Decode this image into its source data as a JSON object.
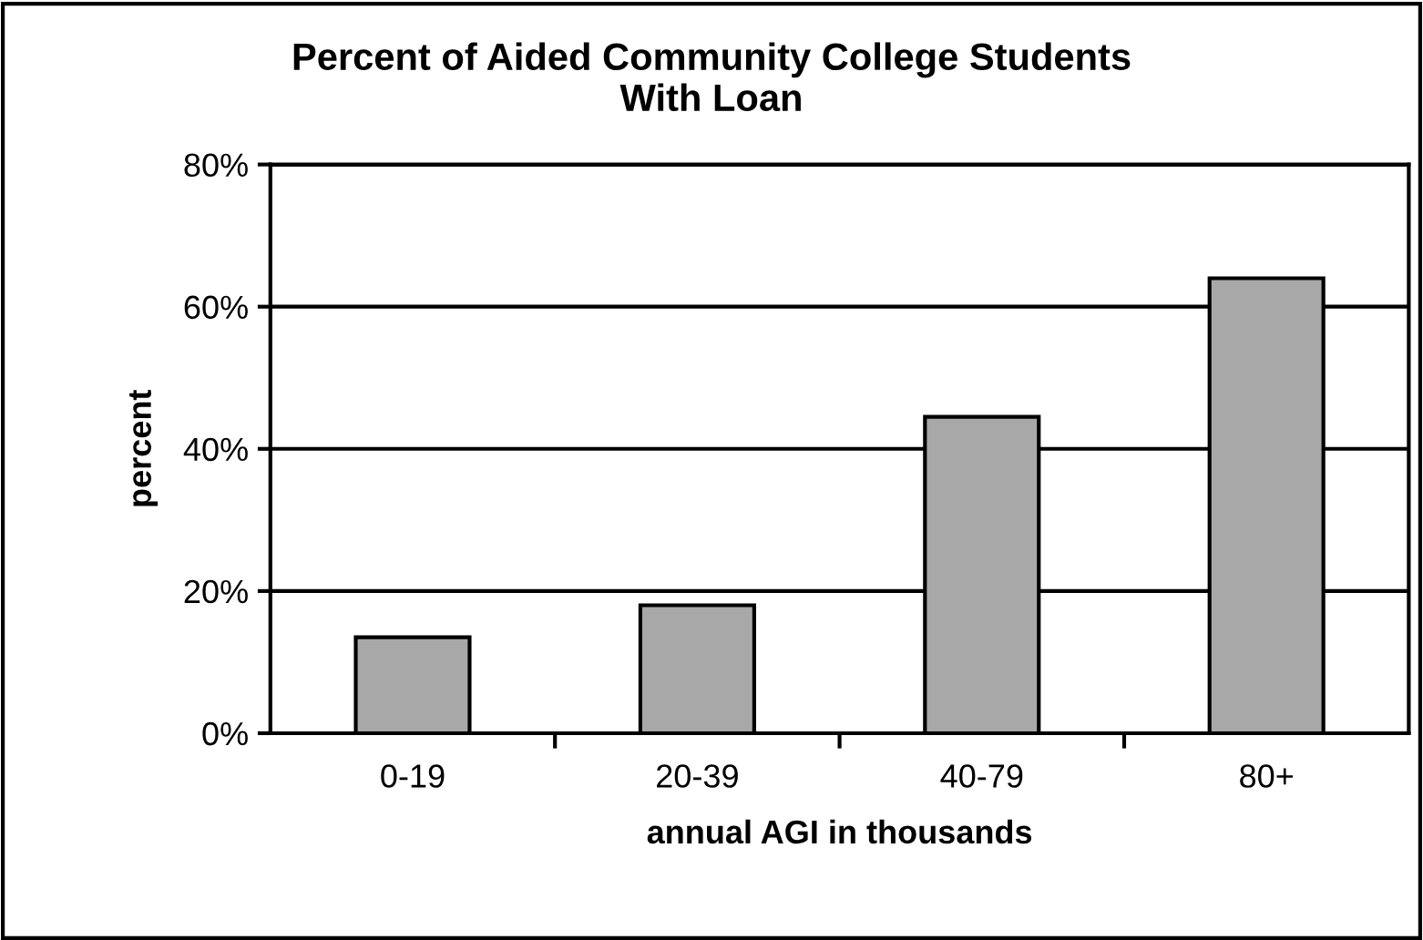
{
  "chart_data": {
    "type": "bar",
    "title": "Percent of Aided Community College Students\nWith Loan",
    "xlabel": "annual AGI in thousands",
    "ylabel": "percent",
    "categories": [
      "0-19",
      "20-39",
      "40-79",
      "80+"
    ],
    "values": [
      13.5,
      18,
      44.5,
      64
    ],
    "color": "#a8a8a8",
    "ylim": [
      0,
      80
    ],
    "yticks": [
      {
        "value": 0,
        "label": "0%"
      },
      {
        "value": 20,
        "label": "20%"
      },
      {
        "value": 40,
        "label": "40%"
      },
      {
        "value": 60,
        "label": "60%"
      },
      {
        "value": 80,
        "label": "80%"
      }
    ],
    "grid": "y",
    "legend": false
  }
}
